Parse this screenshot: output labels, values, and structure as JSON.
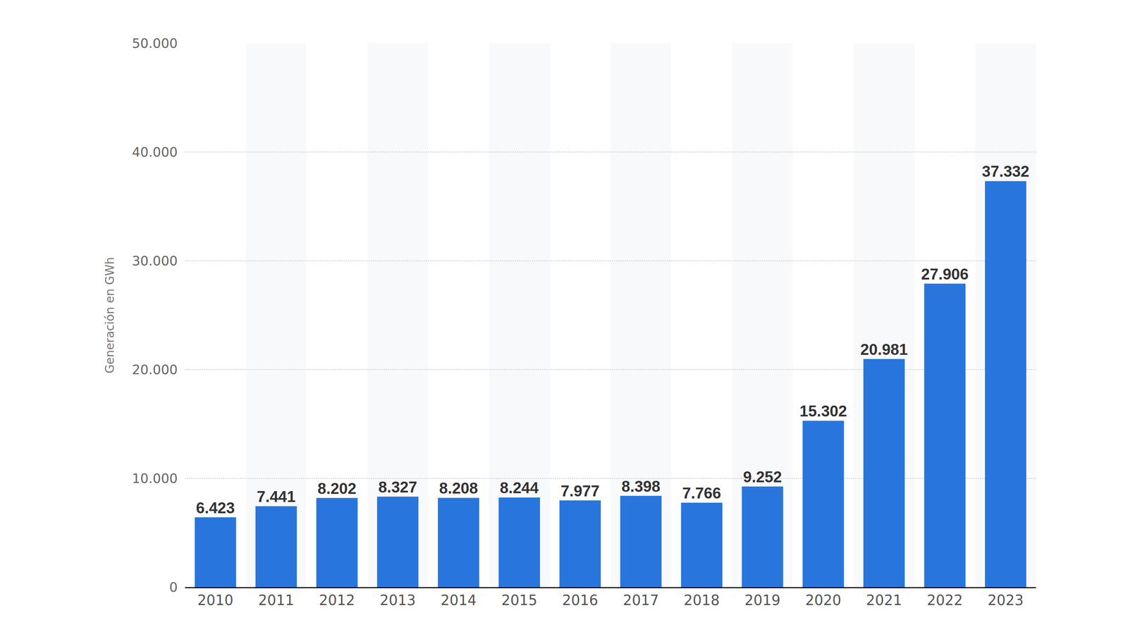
{
  "chart_data": {
    "type": "bar",
    "y_label": "Generación en GWh",
    "categories": [
      "2010",
      "2011",
      "2012",
      "2013",
      "2014",
      "2015",
      "2016",
      "2017",
      "2018",
      "2019",
      "2020",
      "2021",
      "2022",
      "2023"
    ],
    "values": [
      6423,
      7441,
      8202,
      8327,
      8208,
      8244,
      7977,
      8398,
      7766,
      9252,
      15302,
      20981,
      27906,
      37332
    ],
    "value_labels": [
      "6.423",
      "7.441",
      "8.202",
      "8.327",
      "8.208",
      "8.244",
      "7.977",
      "8.398",
      "7.766",
      "9.252",
      "15.302",
      "20.981",
      "27.906",
      "37.332"
    ],
    "color": "#2876dd",
    "ylim": [
      0,
      50000
    ],
    "yticks": [
      0,
      {
        "value": 10000,
        "label": "10.000"
      },
      {
        "value": 20000,
        "label": "20.000"
      },
      {
        "value": 30000,
        "label": "30.000"
      },
      {
        "value": 40000,
        "label": "40.000"
      },
      {
        "value": 50000,
        "label": "50.000"
      }
    ],
    "grid": true,
    "data_labels": true
  }
}
